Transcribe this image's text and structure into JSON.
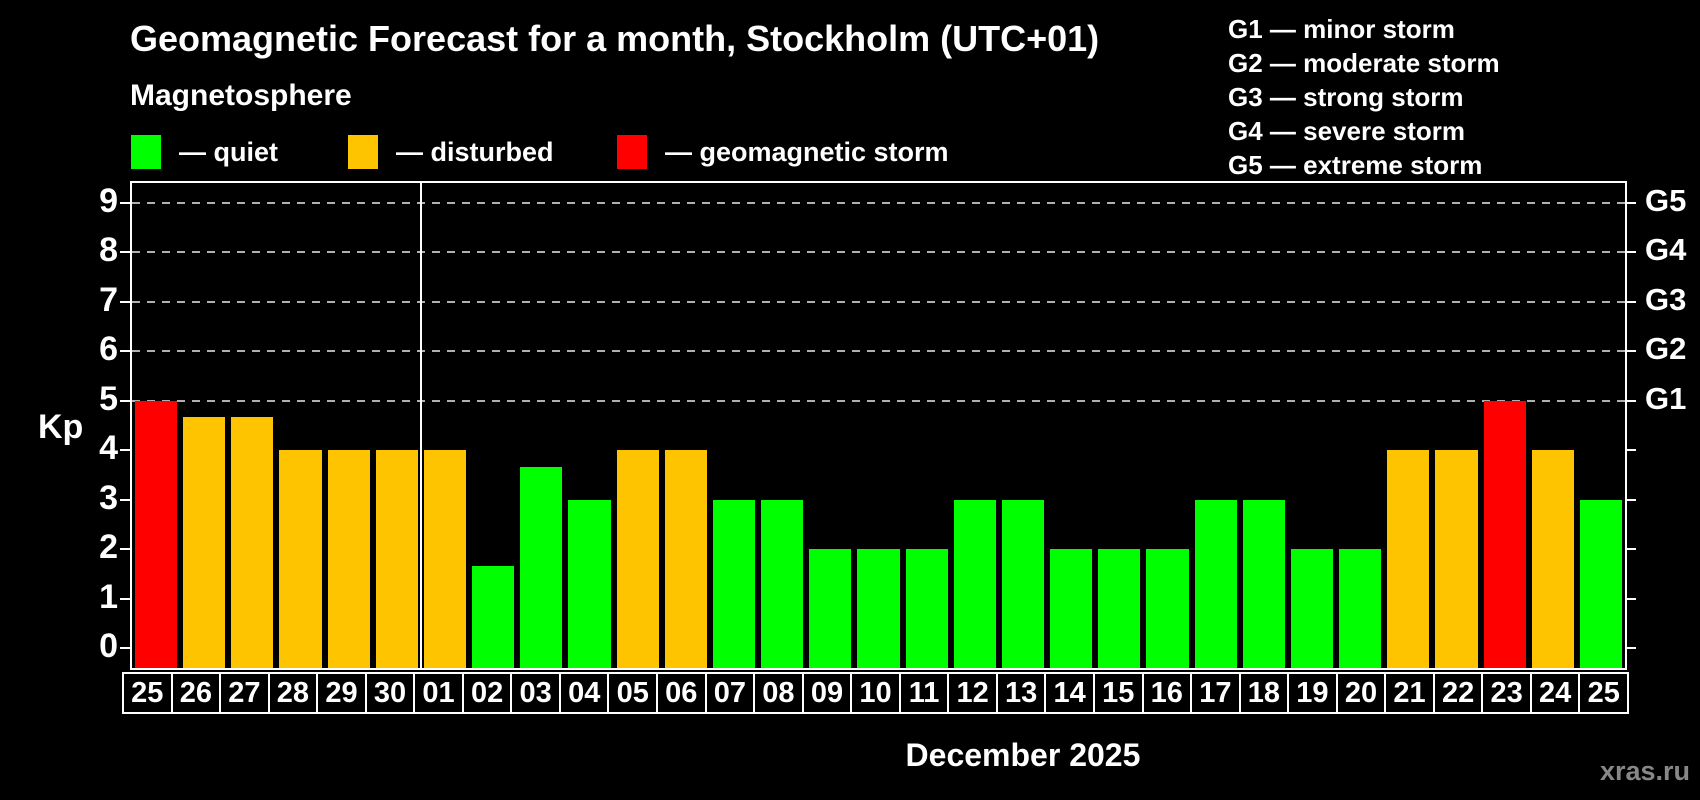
{
  "header": {
    "title": "Geomagnetic Forecast for a month, Stockholm (UTC+01)",
    "subtitle": "Magnetosphere"
  },
  "legend": {
    "items": [
      {
        "name": "quiet",
        "label": "— quiet",
        "color": "#00ff00"
      },
      {
        "name": "disturbed",
        "label": "— disturbed",
        "color": "#ffc400"
      },
      {
        "name": "geomagnetic-storm",
        "label": "— geomagnetic storm",
        "color": "#ff0000"
      }
    ]
  },
  "g_legend": {
    "lines": [
      "G1 — minor storm",
      "G2 — moderate storm",
      "G3 — strong storm",
      "G4 — severe storm",
      "G5 — extreme storm"
    ]
  },
  "chart_data": {
    "type": "bar",
    "title": "Geomagnetic Forecast for a month, Stockholm (UTC+01)",
    "subtitle": "Magnetosphere",
    "ylabel": "Kp",
    "xlabel": "December 2025",
    "ylim": [
      0,
      9
    ],
    "yticks": [
      0,
      1,
      2,
      3,
      4,
      5,
      6,
      7,
      8,
      9
    ],
    "grid": "horizontal dashed lines at Kp 5,6,7,8,9 (G1–G5 levels)",
    "legend_position": "top-left",
    "right_axis_labels": [
      {
        "text": "G1",
        "kp": 5
      },
      {
        "text": "G2",
        "kp": 6
      },
      {
        "text": "G3",
        "kp": 7
      },
      {
        "text": "G4",
        "kp": 8
      },
      {
        "text": "G5",
        "kp": 9
      }
    ],
    "categories": [
      "25",
      "26",
      "27",
      "28",
      "29",
      "30",
      "01",
      "02",
      "03",
      "04",
      "05",
      "06",
      "07",
      "08",
      "09",
      "10",
      "11",
      "12",
      "13",
      "14",
      "15",
      "16",
      "17",
      "18",
      "19",
      "20",
      "21",
      "22",
      "23",
      "24",
      "25"
    ],
    "values": [
      5,
      4.67,
      4.67,
      4,
      4,
      4,
      4,
      1.67,
      3.67,
      3,
      4,
      4,
      3,
      3,
      2,
      2,
      2,
      3,
      3,
      2,
      2,
      2,
      3,
      3,
      2,
      2,
      4,
      4,
      5,
      4,
      3
    ],
    "statuses": [
      "storm",
      "disturbed",
      "disturbed",
      "disturbed",
      "disturbed",
      "disturbed",
      "disturbed",
      "quiet",
      "quiet",
      "quiet",
      "disturbed",
      "disturbed",
      "quiet",
      "quiet",
      "quiet",
      "quiet",
      "quiet",
      "quiet",
      "quiet",
      "quiet",
      "quiet",
      "quiet",
      "quiet",
      "quiet",
      "quiet",
      "quiet",
      "disturbed",
      "disturbed",
      "storm",
      "disturbed",
      "quiet"
    ],
    "status_colors": {
      "quiet": "#00ff00",
      "disturbed": "#ffc400",
      "storm": "#ff0000"
    },
    "month_separator_after_index": 5
  },
  "watermark": "xras.ru"
}
